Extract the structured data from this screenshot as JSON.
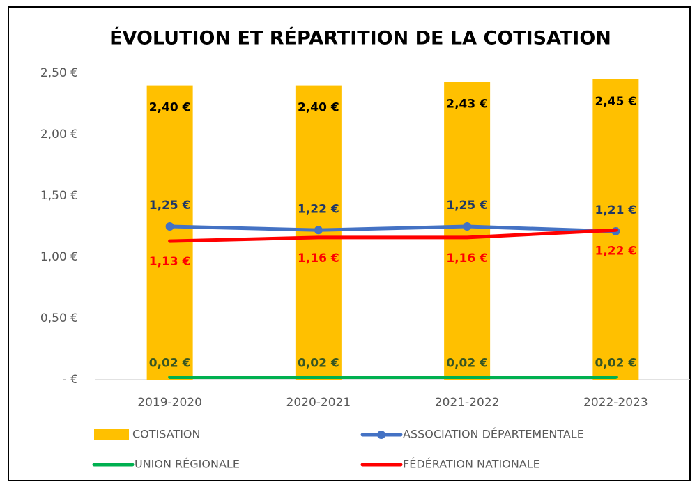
{
  "chart_data": {
    "type": "bar",
    "title": "ÉVOLUTION ET RÉPARTITION DE LA COTISATION",
    "categories": [
      "2019-2020",
      "2020-2021",
      "2021-2022",
      "2022-2023"
    ],
    "ylim": [
      0,
      2.5
    ],
    "yticks": [
      {
        "value": 0,
        "label": "-   €"
      },
      {
        "value": 0.5,
        "label": "0,50 €"
      },
      {
        "value": 1,
        "label": "1,00 €"
      },
      {
        "value": 1.5,
        "label": "1,50 €"
      },
      {
        "value": 2,
        "label": "2,00 €"
      },
      {
        "value": 2.5,
        "label": "2,50 €"
      }
    ],
    "grid": false,
    "series": [
      {
        "name": "COTISATION",
        "type": "bar",
        "color": "#FFC000",
        "label_color": "#000000",
        "values": [
          2.4,
          2.4,
          2.43,
          2.45
        ],
        "value_labels": [
          "2,40 €",
          "2,40 €",
          "2,43 €",
          "2,45 €"
        ]
      },
      {
        "name": "ASSOCIATION DÉPARTEMENTALE",
        "type": "line",
        "color": "#4472C4",
        "marker": true,
        "label_color": "#203864",
        "values": [
          1.25,
          1.22,
          1.25,
          1.21
        ],
        "value_labels": [
          "1,25 €",
          "1,22 €",
          "1,25 €",
          "1,21 €"
        ]
      },
      {
        "name": "UNION RÉGIONALE",
        "type": "line",
        "color": "#00B050",
        "marker": false,
        "label_color": "#375623",
        "values": [
          0.02,
          0.02,
          0.02,
          0.02
        ],
        "value_labels": [
          "0,02 €",
          "0,02 €",
          "0,02 €",
          "0,02 €"
        ]
      },
      {
        "name": "FÉDÉRATION NATIONALE",
        "type": "line",
        "color": "#FF0000",
        "marker": false,
        "label_color": "#FF0000",
        "values": [
          1.13,
          1.16,
          1.16,
          1.22
        ],
        "value_labels": [
          "1,13 €",
          "1,16 €",
          "1,16 €",
          "1,22 €"
        ]
      }
    ]
  }
}
